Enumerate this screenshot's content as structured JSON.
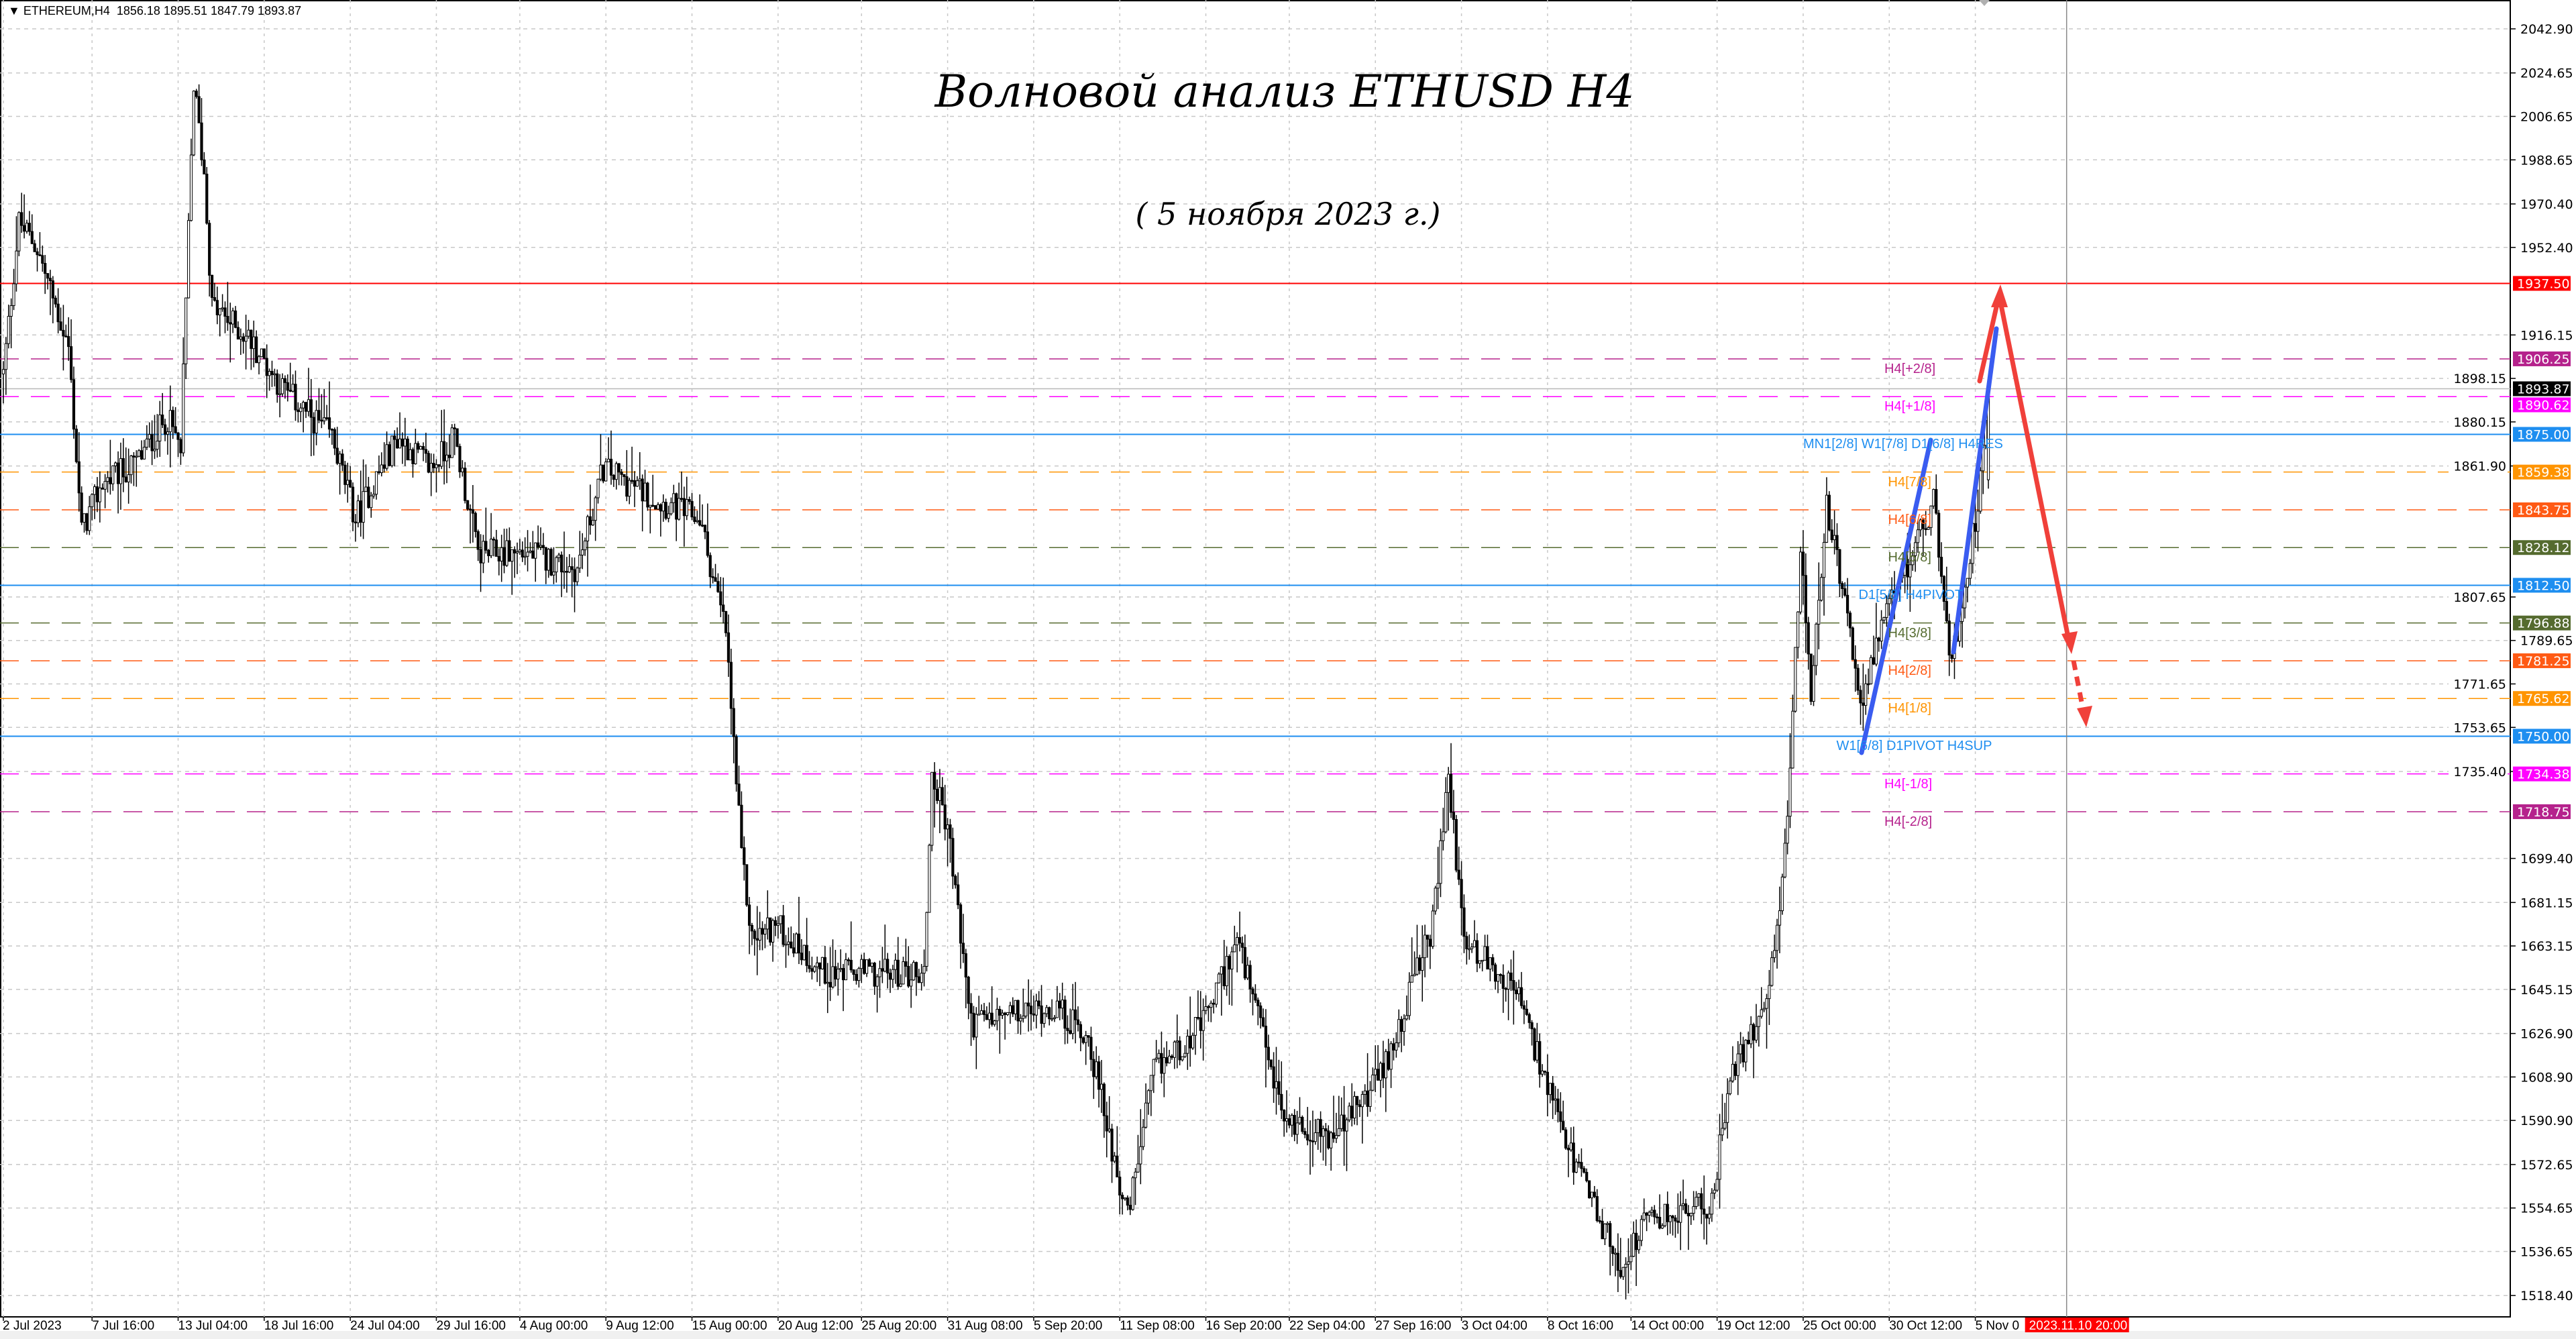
{
  "header": {
    "symbol": "ETHEREUM,H4",
    "ohlc": "1856.18 1895.51 1847.79 1893.87"
  },
  "annotation": {
    "title": "Волновой анализ ETHUSD H4",
    "subtitle": "( 5 ноября 2023 г.)"
  },
  "chart_data": {
    "type": "candlestick",
    "symbol": "ETHEREUM",
    "timeframe": "H4",
    "last_bar": {
      "open": 1856.18,
      "high": 1895.51,
      "low": 1847.79,
      "close": 1893.87
    },
    "ylim": [
      1510,
      2048
    ],
    "grid": true,
    "y_ticks": [
      "2042.90",
      "2024.65",
      "2006.65",
      "1988.65",
      "1970.40",
      "1952.40",
      "1916.15",
      "1898.15",
      "1880.15",
      "1861.90",
      "1807.65",
      "1789.65",
      "1771.65",
      "1753.65",
      "1735.40",
      "1699.40",
      "1681.15",
      "1663.15",
      "1645.15",
      "1626.90",
      "1608.90",
      "1590.90",
      "1572.65",
      "1554.65",
      "1536.65",
      "1518.40"
    ],
    "x_ticks": [
      {
        "t": "2023-07-02T00:00",
        "label": "2 Jul 2023"
      },
      {
        "t": "2023-07-07T16:00",
        "label": "7 Jul 16:00"
      },
      {
        "t": "2023-07-13T04:00",
        "label": "13 Jul 04:00"
      },
      {
        "t": "2023-07-18T16:00",
        "label": "18 Jul 16:00"
      },
      {
        "t": "2023-07-24T04:00",
        "label": "24 Jul 04:00"
      },
      {
        "t": "2023-07-29T16:00",
        "label": "29 Jul 16:00"
      },
      {
        "t": "2023-08-04T00:00",
        "label": "4 Aug 00:00"
      },
      {
        "t": "2023-08-09T12:00",
        "label": "9 Aug 12:00"
      },
      {
        "t": "2023-08-15T00:00",
        "label": "15 Aug 00:00"
      },
      {
        "t": "2023-08-20T12:00",
        "label": "20 Aug 12:00"
      },
      {
        "t": "2023-08-25T20:00",
        "label": "25 Aug 20:00"
      },
      {
        "t": "2023-08-31T08:00",
        "label": "31 Aug 08:00"
      },
      {
        "t": "2023-09-05T20:00",
        "label": "5 Sep 20:00"
      },
      {
        "t": "2023-09-11T08:00",
        "label": "11 Sep 08:00"
      },
      {
        "t": "2023-09-16T20:00",
        "label": "16 Sep 20:00"
      },
      {
        "t": "2023-09-22T04:00",
        "label": "22 Sep 04:00"
      },
      {
        "t": "2023-09-27T16:00",
        "label": "27 Sep 16:00"
      },
      {
        "t": "2023-10-03T04:00",
        "label": "3 Oct 04:00"
      },
      {
        "t": "2023-10-08T16:00",
        "label": "8 Oct 16:00"
      },
      {
        "t": "2023-10-14T00:00",
        "label": "14 Oct 00:00"
      },
      {
        "t": "2023-10-19T12:00",
        "label": "19 Oct 12:00"
      },
      {
        "t": "2023-10-25T00:00",
        "label": "25 Oct 00:00"
      },
      {
        "t": "2023-10-30T12:00",
        "label": "30 Oct 12:00"
      },
      {
        "t": "2023-11-05T00:00",
        "label": "5 Nov 0"
      }
    ],
    "cursor_time": {
      "t": "2023-11-10T20:00",
      "label": "2023.11.10 20:00",
      "color": "#ff0000"
    },
    "current_price": {
      "value": 1893.87,
      "label": "1893.87",
      "color": "#000000"
    },
    "approx_close_path": [
      [
        "2023-07-02T00:00",
        1900
      ],
      [
        "2023-07-03T00:00",
        1963
      ],
      [
        "2023-07-04T04:00",
        1952
      ],
      [
        "2023-07-06T04:00",
        1911
      ],
      [
        "2023-07-07T00:00",
        1835
      ],
      [
        "2023-07-08T08:00",
        1855
      ],
      [
        "2023-07-10T08:00",
        1862
      ],
      [
        "2023-07-12T12:00",
        1882
      ],
      [
        "2023-07-13T08:00",
        1868
      ],
      [
        "2023-07-14T04:00",
        2020
      ],
      [
        "2023-07-14T20:00",
        1983
      ],
      [
        "2023-07-15T08:00",
        1928
      ],
      [
        "2023-07-17T16:00",
        1915
      ],
      [
        "2023-07-19T20:00",
        1894
      ],
      [
        "2023-07-23T00:00",
        1874
      ],
      [
        "2023-07-24T12:00",
        1840
      ],
      [
        "2023-07-27T04:00",
        1874
      ],
      [
        "2023-07-29T08:00",
        1861
      ],
      [
        "2023-07-30T20:00",
        1874
      ],
      [
        "2023-08-01T08:00",
        1826
      ],
      [
        "2023-08-04T12:00",
        1826
      ],
      [
        "2023-08-07T16:00",
        1819
      ],
      [
        "2023-08-09T08:00",
        1861
      ],
      [
        "2023-08-13T00:00",
        1847
      ],
      [
        "2023-08-15T12:00",
        1840
      ],
      [
        "2023-08-17T04:00",
        1793
      ],
      [
        "2023-08-18T04:00",
        1700
      ],
      [
        "2023-08-18T20:00",
        1666
      ],
      [
        "2023-08-20T08:00",
        1672
      ],
      [
        "2023-08-23T12:00",
        1652
      ],
      [
        "2023-08-25T16:00",
        1652
      ],
      [
        "2023-08-29T20:00",
        1652
      ],
      [
        "2023-08-30T08:00",
        1734
      ],
      [
        "2023-08-31T08:00",
        1713
      ],
      [
        "2023-09-01T20:00",
        1631
      ],
      [
        "2023-09-07T04:00",
        1638
      ],
      [
        "2023-09-09T08:00",
        1625
      ],
      [
        "2023-09-11T20:00",
        1550
      ],
      [
        "2023-09-13T12:00",
        1611
      ],
      [
        "2023-09-16T16:00",
        1631
      ],
      [
        "2023-09-18T20:00",
        1666
      ],
      [
        "2023-09-21T20:00",
        1591
      ],
      [
        "2023-09-25T00:00",
        1584
      ],
      [
        "2023-09-28T04:00",
        1611
      ],
      [
        "2023-10-01T08:00",
        1672
      ],
      [
        "2023-10-02T08:00",
        1734
      ],
      [
        "2023-10-03T08:00",
        1666
      ],
      [
        "2023-10-06T16:00",
        1645
      ],
      [
        "2023-10-09T16:00",
        1584
      ],
      [
        "2023-10-13T08:00",
        1530
      ],
      [
        "2023-10-15T00:00",
        1549
      ],
      [
        "2023-10-19T04:00",
        1556
      ],
      [
        "2023-10-20T04:00",
        1604
      ],
      [
        "2023-10-22T20:00",
        1645
      ],
      [
        "2023-10-23T20:00",
        1700
      ],
      [
        "2023-10-24T20:00",
        1826
      ],
      [
        "2023-10-25T12:00",
        1765
      ],
      [
        "2023-10-26T12:00",
        1847
      ],
      [
        "2023-10-28T16:00",
        1765
      ],
      [
        "2023-10-30T16:00",
        1806
      ],
      [
        "2023-11-02T08:00",
        1847
      ],
      [
        "2023-11-03T12:00",
        1779
      ],
      [
        "2023-11-05T04:00",
        1847
      ],
      [
        "2023-11-05T20:00",
        1893.87
      ]
    ],
    "levels": [
      {
        "value": 1937.5,
        "label": "1937.50",
        "color": "#ff0000",
        "style": "solid",
        "text": ""
      },
      {
        "value": 1906.25,
        "label": "1906.25",
        "color": "#b5228c",
        "style": "dashed",
        "text": "H4[+2/8]"
      },
      {
        "value": 1890.62,
        "label": "1890.62",
        "color": "#ff00ff",
        "style": "dashed",
        "text": "H4[+1/8]"
      },
      {
        "value": 1875.0,
        "label": "1875.00",
        "color": "#1e8ef0",
        "style": "solid",
        "text": "MN1[2/8] W1[7/8] D1[6/8] H4RES"
      },
      {
        "value": 1859.38,
        "label": "1859.38",
        "color": "#ff9400",
        "style": "dashed",
        "text": "H4[7/8]"
      },
      {
        "value": 1843.75,
        "label": "1843.75",
        "color": "#ff5a14",
        "style": "dashed",
        "text": "H4[6/8]"
      },
      {
        "value": 1828.12,
        "label": "1828.12",
        "color": "#556b2f",
        "style": "dashed",
        "text": "H4[5/8]"
      },
      {
        "value": 1812.5,
        "label": "1812.50",
        "color": "#1e8ef0",
        "style": "solid",
        "text": "D1[5/8] H4PIVOT"
      },
      {
        "value": 1796.88,
        "label": "1796.88",
        "color": "#556b2f",
        "style": "dashed",
        "text": "H4[3/8]"
      },
      {
        "value": 1781.25,
        "label": "1781.25",
        "color": "#ff5a14",
        "style": "dashed",
        "text": "H4[2/8]"
      },
      {
        "value": 1765.62,
        "label": "1765.62",
        "color": "#ff9400",
        "style": "dashed",
        "text": "H4[1/8]"
      },
      {
        "value": 1750.0,
        "label": "1750.00",
        "color": "#1e8ef0",
        "style": "solid",
        "text": "W1[6/8] D1PIVOT H4SUP"
      },
      {
        "value": 1734.38,
        "label": "1734.38",
        "color": "#ff00ff",
        "style": "dashed",
        "text": "H4[-1/8]"
      },
      {
        "value": 1718.75,
        "label": "1718.75",
        "color": "#b5228c",
        "style": "dashed",
        "text": "H4[-2/8]"
      }
    ],
    "forecast": {
      "wave_color": "#3a5cf0",
      "projection_color": "#f0403a",
      "target_high": 1937.5,
      "target_low": 1750
    }
  }
}
